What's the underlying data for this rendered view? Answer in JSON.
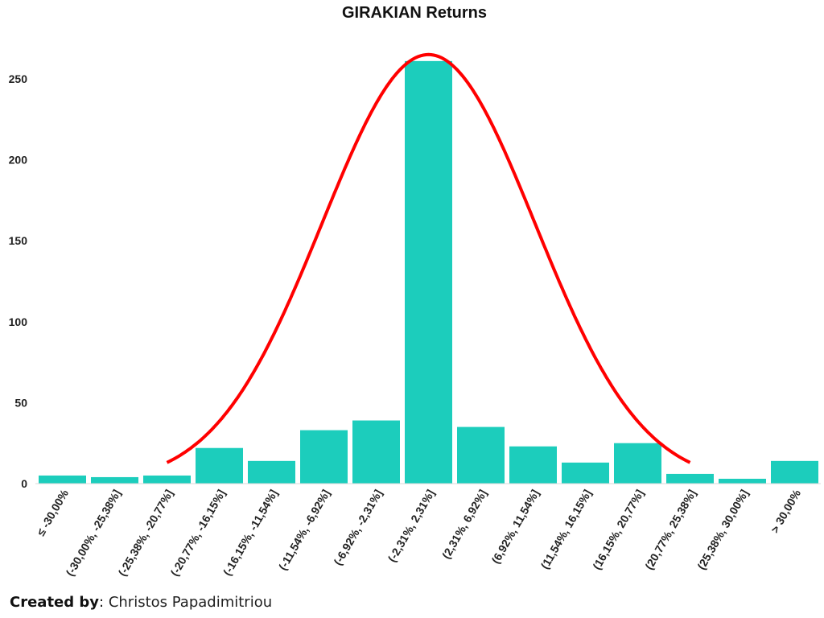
{
  "chart_data": {
    "type": "bar",
    "title": "GIRAKIAN Returns",
    "xlabel": "",
    "ylabel": "",
    "ylim": [
      0,
      265
    ],
    "yticks": [
      0,
      50,
      100,
      150,
      200,
      250
    ],
    "grid": false,
    "legend": "none",
    "categories": [
      "≤ -30,00%",
      "(-30,00%, -25,38%]",
      "(-25,38%, -20,77%]",
      "(-20,77%, -16,15%]",
      "(-16,15%, -11,54%]",
      "(-11,54%, -6,92%]",
      "(-6,92%, -2,31%]",
      "(-2,31%, 2,31%]",
      "(2,31%, 6,92%]",
      "(6,92%, 11,54%]",
      "(11,54%, 16,15%]",
      "(16,15%, 20,77%]",
      "(20,77%, 25,38%]",
      "(25,38%, 30,00%]",
      "> 30,00%"
    ],
    "values": [
      5,
      4,
      5,
      22,
      14,
      33,
      39,
      261,
      35,
      23,
      13,
      25,
      6,
      3,
      14
    ],
    "overlay": {
      "type": "normal-curve",
      "peak": 265,
      "start_value": 13,
      "end_value": 13
    },
    "colors": {
      "bar": "#1ccdbc",
      "curve": "#ff0000"
    }
  },
  "footer": {
    "credit_label": "Created by",
    "credit_sep": ":",
    "credit_name": " Christos Papadimitriou"
  }
}
